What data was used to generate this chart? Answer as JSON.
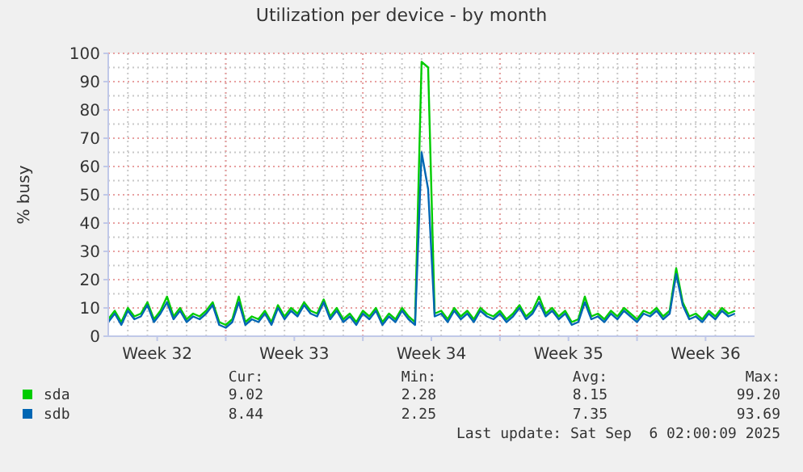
{
  "chart_data": {
    "type": "line",
    "title": "Utilization per device - by month",
    "ylabel": "% busy",
    "x": [
      "2025-08-05T00:00",
      "2025-08-05T08:00",
      "2025-08-05T16:00",
      "2025-08-06T00:00",
      "2025-08-06T08:00",
      "2025-08-06T16:00",
      "2025-08-07T00:00",
      "2025-08-07T08:00",
      "2025-08-07T16:00",
      "2025-08-08T00:00",
      "2025-08-08T08:00",
      "2025-08-08T16:00",
      "2025-08-09T00:00",
      "2025-08-09T08:00",
      "2025-08-09T16:00",
      "2025-08-10T00:00",
      "2025-08-10T08:00",
      "2025-08-10T16:00",
      "2025-08-11T00:00",
      "2025-08-11T08:00",
      "2025-08-11T16:00",
      "2025-08-12T00:00",
      "2025-08-12T08:00",
      "2025-08-12T16:00",
      "2025-08-13T00:00",
      "2025-08-13T08:00",
      "2025-08-13T16:00",
      "2025-08-14T00:00",
      "2025-08-14T08:00",
      "2025-08-14T16:00",
      "2025-08-15T00:00",
      "2025-08-15T08:00",
      "2025-08-15T16:00",
      "2025-08-16T00:00",
      "2025-08-16T08:00",
      "2025-08-16T16:00",
      "2025-08-17T00:00",
      "2025-08-17T08:00",
      "2025-08-17T16:00",
      "2025-08-18T00:00",
      "2025-08-18T08:00",
      "2025-08-18T16:00",
      "2025-08-19T00:00",
      "2025-08-19T08:00",
      "2025-08-19T16:00",
      "2025-08-20T00:00",
      "2025-08-20T08:00",
      "2025-08-20T16:00",
      "2025-08-21T00:00",
      "2025-08-21T08:00",
      "2025-08-21T16:00",
      "2025-08-22T00:00",
      "2025-08-22T08:00",
      "2025-08-22T16:00",
      "2025-08-23T00:00",
      "2025-08-23T08:00",
      "2025-08-23T16:00",
      "2025-08-24T00:00",
      "2025-08-24T08:00",
      "2025-08-24T16:00",
      "2025-08-25T00:00",
      "2025-08-25T08:00",
      "2025-08-25T16:00",
      "2025-08-26T00:00",
      "2025-08-26T08:00",
      "2025-08-26T16:00",
      "2025-08-27T00:00",
      "2025-08-27T08:00",
      "2025-08-27T16:00",
      "2025-08-28T00:00",
      "2025-08-28T08:00",
      "2025-08-28T16:00",
      "2025-08-29T00:00",
      "2025-08-29T08:00",
      "2025-08-29T16:00",
      "2025-08-30T00:00",
      "2025-08-30T08:00",
      "2025-08-30T16:00",
      "2025-08-31T00:00",
      "2025-08-31T08:00",
      "2025-08-31T16:00",
      "2025-09-01T00:00",
      "2025-09-01T08:00",
      "2025-09-01T16:00",
      "2025-09-02T00:00",
      "2025-09-02T08:00",
      "2025-09-02T16:00",
      "2025-09-03T00:00",
      "2025-09-03T08:00",
      "2025-09-03T16:00",
      "2025-09-04T00:00",
      "2025-09-04T08:00",
      "2025-09-04T16:00",
      "2025-09-05T00:00",
      "2025-09-05T08:00",
      "2025-09-05T16:00",
      "2025-09-06T00:00"
    ],
    "series": [
      {
        "name": "sda",
        "color": "#00cc00",
        "values": [
          6,
          9,
          5,
          10,
          7,
          8,
          12,
          6,
          9,
          14,
          7,
          10,
          6,
          8,
          7,
          9,
          12,
          5,
          4,
          6,
          14,
          5,
          7,
          6,
          9,
          5,
          11,
          7,
          10,
          8,
          12,
          9,
          8,
          13,
          7,
          10,
          6,
          8,
          5,
          9,
          7,
          10,
          5,
          8,
          6,
          10,
          7,
          5,
          97,
          95,
          8,
          9,
          6,
          10,
          7,
          9,
          6,
          10,
          8,
          7,
          9,
          6,
          8,
          11,
          7,
          9,
          14,
          8,
          10,
          7,
          9,
          5,
          6,
          14,
          7,
          8,
          6,
          9,
          7,
          10,
          8,
          6,
          9,
          8,
          10,
          7,
          9,
          24,
          12,
          7,
          8,
          6,
          9,
          7,
          10,
          8,
          9
        ]
      },
      {
        "name": "sdb",
        "color": "#0066b3",
        "values": [
          5,
          8,
          4,
          9,
          6,
          7,
          11,
          5,
          8,
          12,
          6,
          9,
          5,
          7,
          6,
          8,
          11,
          4,
          3,
          5,
          12,
          4,
          6,
          5,
          8,
          4,
          10,
          6,
          9,
          7,
          11,
          8,
          7,
          12,
          6,
          9,
          5,
          7,
          4,
          8,
          6,
          9,
          4,
          7,
          5,
          9,
          6,
          4,
          65,
          52,
          7,
          8,
          5,
          9,
          6,
          8,
          5,
          9,
          7,
          6,
          8,
          5,
          7,
          10,
          6,
          8,
          12,
          7,
          9,
          6,
          8,
          4,
          5,
          12,
          6,
          7,
          5,
          8,
          6,
          9,
          7,
          5,
          8,
          7,
          9,
          6,
          8,
          22,
          11,
          6,
          7,
          5,
          8,
          6,
          9,
          7,
          8
        ]
      }
    ],
    "xlim": [
      "2025-08-05T00:00",
      "2025-09-07T00:00"
    ],
    "xticks": [
      {
        "value": "2025-08-07T12:00",
        "label": "Week 32"
      },
      {
        "value": "2025-08-11",
        "label": null
      },
      {
        "value": "2025-08-14T12:00",
        "label": "Week 33"
      },
      {
        "value": "2025-08-18",
        "label": null
      },
      {
        "value": "2025-08-21T12:00",
        "label": "Week 34"
      },
      {
        "value": "2025-08-25",
        "label": null
      },
      {
        "value": "2025-08-28T12:00",
        "label": "Week 35"
      },
      {
        "value": "2025-09-01",
        "label": null
      },
      {
        "value": "2025-09-04T12:00",
        "label": "Week 36"
      }
    ],
    "ylim": [
      0,
      100
    ],
    "yticks": [
      0,
      10,
      20,
      30,
      40,
      50,
      60,
      70,
      80,
      90,
      100
    ],
    "grid": true,
    "legend": "bottom",
    "annotations": [
      "Cur:",
      "Min:",
      "Avg:",
      "Max:",
      "9.02",
      "2.28",
      "8.15",
      "99.20",
      "8.44",
      "2.25",
      "7.35",
      "93.69",
      "Last update: Sat Sep  6 02:00:09 2025"
    ]
  }
}
